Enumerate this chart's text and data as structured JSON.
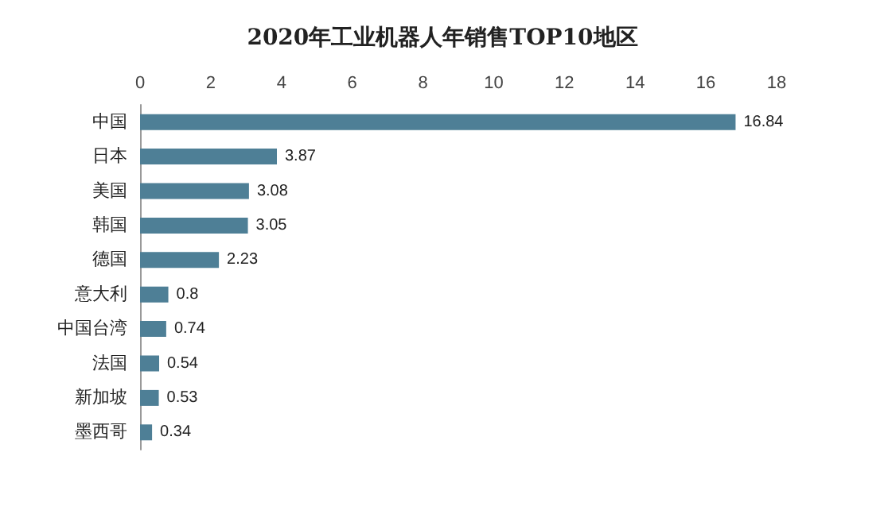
{
  "chart_data": {
    "type": "bar",
    "orientation": "horizontal",
    "title": "2020年工业机器人年销售TOP10地区",
    "categories": [
      "中国",
      "日本",
      "美国",
      "韩国",
      "德国",
      "意大利",
      "中国台湾",
      "法国",
      "新加坡",
      "墨西哥"
    ],
    "values": [
      16.84,
      3.87,
      3.08,
      3.05,
      2.23,
      0.8,
      0.74,
      0.54,
      0.53,
      0.34
    ],
    "color": "#4e7f96",
    "xlim": [
      0,
      18
    ],
    "xticks": [
      0,
      2,
      4,
      6,
      8,
      10,
      12,
      14,
      16,
      18
    ],
    "grid": false,
    "data_labels": true
  }
}
